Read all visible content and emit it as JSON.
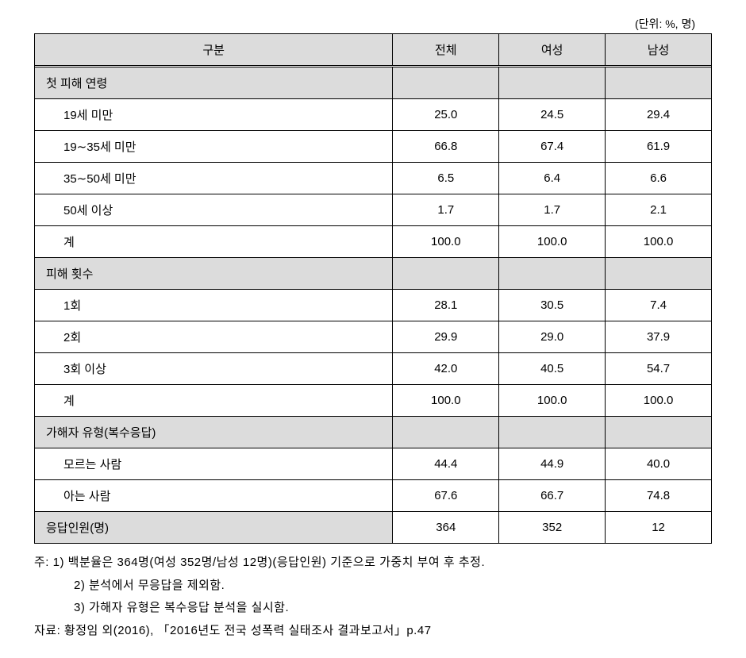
{
  "unit": "(단위: %, 명)",
  "headers": {
    "category": "구분",
    "total": "전체",
    "female": "여성",
    "male": "남성"
  },
  "sections": [
    {
      "title": "첫 피해 연령",
      "rows": [
        {
          "label": "19세 미만",
          "total": "25.0",
          "female": "24.5",
          "male": "29.4"
        },
        {
          "label": "19∼35세 미만",
          "total": "66.8",
          "female": "67.4",
          "male": "61.9"
        },
        {
          "label": "35∼50세 미만",
          "total": "6.5",
          "female": "6.4",
          "male": "6.6"
        },
        {
          "label": "50세 이상",
          "total": "1.7",
          "female": "1.7",
          "male": "2.1"
        },
        {
          "label": "계",
          "total": "100.0",
          "female": "100.0",
          "male": "100.0"
        }
      ]
    },
    {
      "title": "피해 횟수",
      "rows": [
        {
          "label": "1회",
          "total": "28.1",
          "female": "30.5",
          "male": "7.4"
        },
        {
          "label": "2회",
          "total": "29.9",
          "female": "29.0",
          "male": "37.9"
        },
        {
          "label": "3회 이상",
          "total": "42.0",
          "female": "40.5",
          "male": "54.7"
        },
        {
          "label": "계",
          "total": "100.0",
          "female": "100.0",
          "male": "100.0"
        }
      ]
    },
    {
      "title": "가해자 유형(복수응답)",
      "rows": [
        {
          "label": "모르는 사람",
          "total": "44.4",
          "female": "44.9",
          "male": "40.0"
        },
        {
          "label": "아는 사람",
          "total": "67.6",
          "female": "66.7",
          "male": "74.8"
        }
      ]
    }
  ],
  "footer_row": {
    "label": "응답인원(명)",
    "total": "364",
    "female": "352",
    "male": "12"
  },
  "notes": {
    "line1": "주: 1) 백분율은 364명(여성 352명/남성 12명)(응답인원) 기준으로 가중치 부여 후 추정.",
    "line2": "2) 분석에서 무응답을 제외함.",
    "line3": "3) 가해자 유형은 복수응답 분석을 실시함.",
    "source": "자료: 황정임 외(2016), 「2016년도 전국 성폭력 실태조사 결과보고서」p.47"
  }
}
